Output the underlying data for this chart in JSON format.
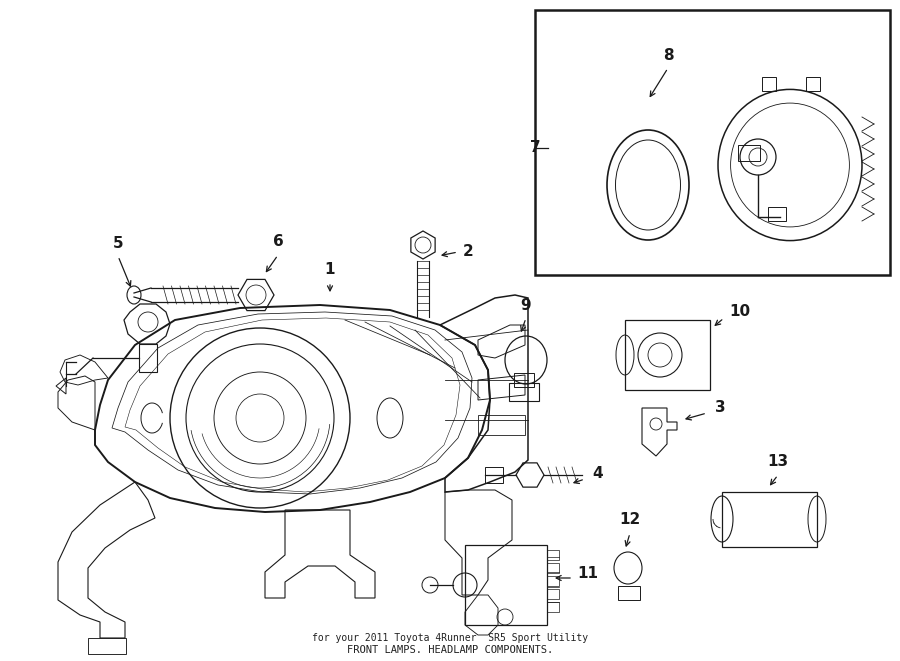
{
  "bg_color": "#ffffff",
  "line_color": "#1a1a1a",
  "figsize": [
    9.0,
    6.61
  ],
  "dpi": 100,
  "footer1": "FRONT LAMPS. HEADLAMP COMPONENTS.",
  "footer2": "for your 2011 Toyota 4Runner  SR5 Sport Utility"
}
